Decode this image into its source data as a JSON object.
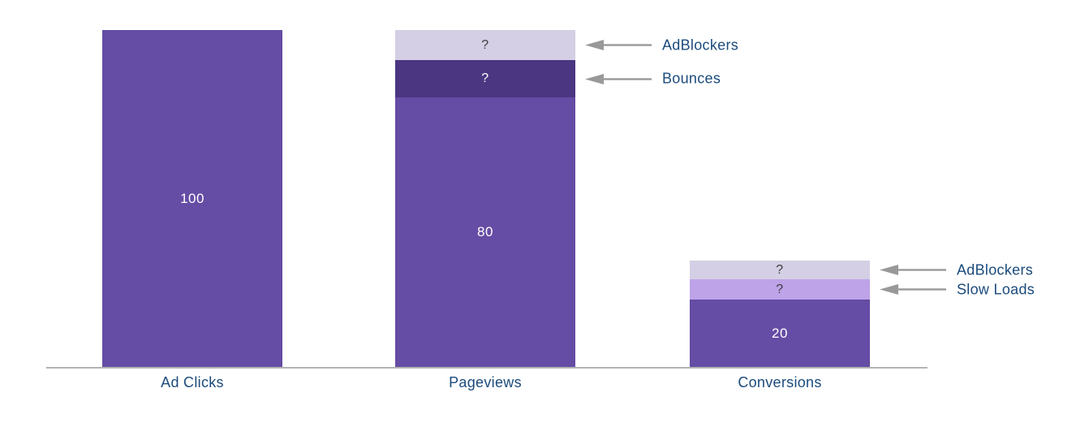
{
  "chart_data": {
    "type": "bar",
    "stacked": true,
    "title": "",
    "xlabel": "",
    "ylabel": "",
    "ylim": [
      0,
      100
    ],
    "grid": false,
    "legend": "none (arrow annotations instead)",
    "unknown_marker": "?",
    "categories": [
      "Ad Clicks",
      "Pageviews",
      "Conversions"
    ],
    "category_label_color": "#1b4b7c",
    "annotation_label_color": "#1b4b7c",
    "arrow_color": "#999999",
    "axis_line_color": "#b3b3b3",
    "bars": [
      {
        "category": "Ad Clicks",
        "total": 100,
        "segments": [
          {
            "name": "ad-clicks",
            "value": 100,
            "label": "100",
            "color": "#654ca4",
            "label_color": "#ffffff",
            "annotation": ""
          }
        ]
      },
      {
        "category": "Pageviews",
        "total": 100,
        "segments": [
          {
            "name": "pageviews",
            "value": 80,
            "label": "80",
            "color": "#654ca4",
            "label_color": "#ffffff",
            "annotation": ""
          },
          {
            "name": "bounces",
            "value": 11,
            "label": "?",
            "color": "#4b3682",
            "label_color": "#ffffff",
            "annotation": "Bounces"
          },
          {
            "name": "adblockers",
            "value": 9,
            "label": "?",
            "color": "#d4cfe4",
            "label_color": "#3c3c3c",
            "annotation": "AdBlockers"
          }
        ]
      },
      {
        "category": "Conversions",
        "total": 31.5,
        "segments": [
          {
            "name": "conversions",
            "value": 20,
            "label": "20",
            "color": "#654ca4",
            "label_color": "#ffffff",
            "annotation": ""
          },
          {
            "name": "slow-loads",
            "value": 6,
            "label": "?",
            "color": "#bea3e8",
            "label_color": "#3c3c3c",
            "annotation": "Slow Loads"
          },
          {
            "name": "adblockers",
            "value": 5.5,
            "label": "?",
            "color": "#d4cfe4",
            "label_color": "#3c3c3c",
            "annotation": "AdBlockers"
          }
        ]
      }
    ],
    "notes": "Funnel-style stacked bar chart. '?' segments denote unknown loss amounts; their values here are estimated from pixel heights."
  }
}
